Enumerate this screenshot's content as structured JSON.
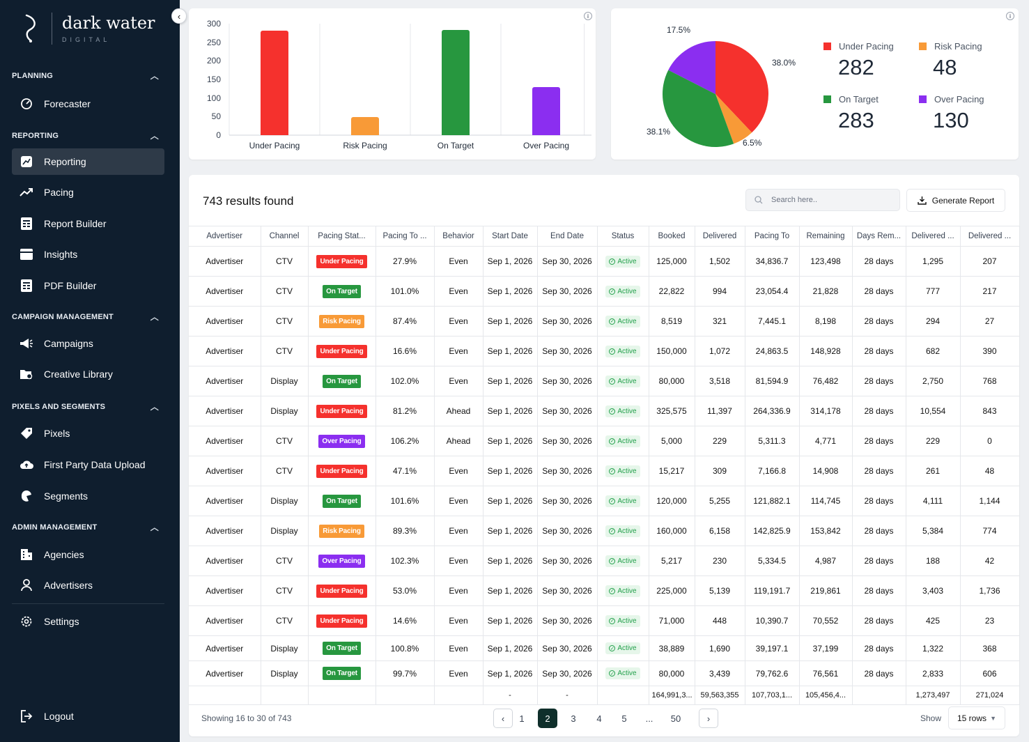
{
  "brand": {
    "name": "dark water",
    "sub": "DIGITAL"
  },
  "sidebar": {
    "sections": [
      {
        "label": "PLANNING",
        "items": [
          {
            "label": "Forecaster",
            "icon": "gauge-icon"
          }
        ]
      },
      {
        "label": "REPORTING",
        "items": [
          {
            "label": "Reporting",
            "icon": "report-icon",
            "active": true
          },
          {
            "label": "Pacing",
            "icon": "trend-icon"
          },
          {
            "label": "Report Builder",
            "icon": "builder-icon"
          },
          {
            "label": "Insights",
            "icon": "insights-icon"
          },
          {
            "label": "PDF Builder",
            "icon": "pdf-icon"
          }
        ]
      },
      {
        "label": "CAMPAIGN MANAGEMENT",
        "items": [
          {
            "label": "Campaigns",
            "icon": "megaphone-icon"
          },
          {
            "label": "Creative Library",
            "icon": "folder-icon"
          }
        ]
      },
      {
        "label": "PIXELS AND SEGMENTS",
        "items": [
          {
            "label": "Pixels",
            "icon": "tag-icon"
          },
          {
            "label": "First Party Data Upload",
            "icon": "cloud-upload-icon"
          },
          {
            "label": "Segments",
            "icon": "segments-icon"
          }
        ]
      },
      {
        "label": "ADMIN MANAGEMENT",
        "items": [
          {
            "label": "Agencies",
            "icon": "building-icon"
          },
          {
            "label": "Advertisers",
            "icon": "user-icon"
          }
        ]
      }
    ],
    "settings": "Settings",
    "logout": "Logout"
  },
  "colors": {
    "under": "#f5312d",
    "risk": "#f89a37",
    "target": "#27973f",
    "over": "#8b2ef0",
    "sidebar": "#0f1e2e",
    "current_page": "#0f2f2b"
  },
  "chart_data": [
    {
      "type": "bar",
      "categories": [
        "Under Pacing",
        "Risk Pacing",
        "On Target",
        "Over Pacing"
      ],
      "values": [
        282,
        48,
        283,
        130
      ],
      "ylim": [
        0,
        300
      ],
      "yticks": [
        "300",
        "250",
        "200",
        "150",
        "100",
        "50",
        "0"
      ],
      "grid": "vertical"
    },
    {
      "type": "pie",
      "labels": [
        "Under Pacing",
        "Risk Pacing",
        "On Target",
        "Over Pacing"
      ],
      "values": [
        282,
        48,
        283,
        130
      ],
      "slice_labels": [
        "38.0%",
        "6.5%",
        "38.1%",
        "17.5%"
      ]
    }
  ],
  "legend": [
    {
      "label": "Under Pacing",
      "value": "282"
    },
    {
      "label": "Risk Pacing",
      "value": "48"
    },
    {
      "label": "On Target",
      "value": "283"
    },
    {
      "label": "Over Pacing",
      "value": "130"
    }
  ],
  "results": {
    "title": "743 results found",
    "search_placeholder": "Search here..",
    "generate": "Generate Report"
  },
  "table": {
    "columns": [
      "Advertiser",
      "Channel",
      "Pacing Stat...",
      "Pacing To ...",
      "Behavior",
      "Start Date",
      "End Date",
      "Status",
      "Booked",
      "Delivered",
      "Pacing To",
      "Remaining",
      "Days Rem...",
      "Delivered ...",
      "Delivered ..."
    ],
    "rows": [
      [
        "Advertiser",
        "CTV",
        "Under Pacing",
        "27.9%",
        "Even",
        "Sep 1, 2026",
        "Sep 30, 2026",
        "Active",
        "125,000",
        "1,502",
        "34,836.7",
        "123,498",
        "28 days",
        "1,295",
        "207"
      ],
      [
        "Advertiser",
        "CTV",
        "On Target",
        "101.0%",
        "Even",
        "Sep 1, 2026",
        "Sep 30, 2026",
        "Active",
        "22,822",
        "994",
        "23,054.4",
        "21,828",
        "28 days",
        "777",
        "217"
      ],
      [
        "Advertiser",
        "CTV",
        "Risk Pacing",
        "87.4%",
        "Even",
        "Sep 1, 2026",
        "Sep 30, 2026",
        "Active",
        "8,519",
        "321",
        "7,445.1",
        "8,198",
        "28 days",
        "294",
        "27"
      ],
      [
        "Advertiser",
        "CTV",
        "Under Pacing",
        "16.6%",
        "Even",
        "Sep 1, 2026",
        "Sep 30, 2026",
        "Active",
        "150,000",
        "1,072",
        "24,863.5",
        "148,928",
        "28 days",
        "682",
        "390"
      ],
      [
        "Advertiser",
        "Display",
        "On Target",
        "102.0%",
        "Even",
        "Sep 1, 2026",
        "Sep 30, 2026",
        "Active",
        "80,000",
        "3,518",
        "81,594.9",
        "76,482",
        "28 days",
        "2,750",
        "768"
      ],
      [
        "Advertiser",
        "Display",
        "Under Pacing",
        "81.2%",
        "Ahead",
        "Sep 1, 2026",
        "Sep 30, 2026",
        "Active",
        "325,575",
        "11,397",
        "264,336.9",
        "314,178",
        "28 days",
        "10,554",
        "843"
      ],
      [
        "Advertiser",
        "CTV",
        "Over Pacing",
        "106.2%",
        "Ahead",
        "Sep 1, 2026",
        "Sep 30, 2026",
        "Active",
        "5,000",
        "229",
        "5,311.3",
        "4,771",
        "28 days",
        "229",
        "0"
      ],
      [
        "Advertiser",
        "CTV",
        "Under Pacing",
        "47.1%",
        "Even",
        "Sep 1, 2026",
        "Sep 30, 2026",
        "Active",
        "15,217",
        "309",
        "7,166.8",
        "14,908",
        "28 days",
        "261",
        "48"
      ],
      [
        "Advertiser",
        "Display",
        "On Target",
        "101.6%",
        "Even",
        "Sep 1, 2026",
        "Sep 30, 2026",
        "Active",
        "120,000",
        "5,255",
        "121,882.1",
        "114,745",
        "28 days",
        "4,111",
        "1,144"
      ],
      [
        "Advertiser",
        "Display",
        "Risk Pacing",
        "89.3%",
        "Even",
        "Sep 1, 2026",
        "Sep 30, 2026",
        "Active",
        "160,000",
        "6,158",
        "142,825.9",
        "153,842",
        "28 days",
        "5,384",
        "774"
      ],
      [
        "Advertiser",
        "CTV",
        "Over Pacing",
        "102.3%",
        "Even",
        "Sep 1, 2026",
        "Sep 30, 2026",
        "Active",
        "5,217",
        "230",
        "5,334.5",
        "4,987",
        "28 days",
        "188",
        "42"
      ],
      [
        "Advertiser",
        "CTV",
        "Under Pacing",
        "53.0%",
        "Even",
        "Sep 1, 2026",
        "Sep 30, 2026",
        "Active",
        "225,000",
        "5,139",
        "119,191.7",
        "219,861",
        "28 days",
        "3,403",
        "1,736"
      ],
      [
        "Advertiser",
        "CTV",
        "Under Pacing",
        "14.6%",
        "Even",
        "Sep 1, 2026",
        "Sep 30, 2026",
        "Active",
        "71,000",
        "448",
        "10,390.7",
        "70,552",
        "28 days",
        "425",
        "23"
      ],
      [
        "Advertiser",
        "Display",
        "On Target",
        "100.8%",
        "Even",
        "Sep 1, 2026",
        "Sep 30, 2026",
        "Active",
        "38,889",
        "1,690",
        "39,197.1",
        "37,199",
        "28 days",
        "1,322",
        "368"
      ],
      [
        "Advertiser",
        "Display",
        "On Target",
        "99.7%",
        "Even",
        "Sep 1, 2026",
        "Sep 30, 2026",
        "Active",
        "80,000",
        "3,439",
        "79,762.6",
        "76,561",
        "28 days",
        "2,833",
        "606"
      ]
    ],
    "totals": [
      "",
      "",
      "",
      "",
      "",
      "-",
      "-",
      "",
      "164,991,3...",
      "59,563,355",
      "107,703,1...",
      "105,456,4...",
      "",
      "1,273,497",
      "271,024"
    ]
  },
  "pagination": {
    "info": "Showing 16 to 30 of 743",
    "pages": [
      "1",
      "2",
      "3",
      "4",
      "5",
      "...",
      "50"
    ],
    "current": "2",
    "show_label": "Show",
    "rows_option": "15 rows"
  }
}
